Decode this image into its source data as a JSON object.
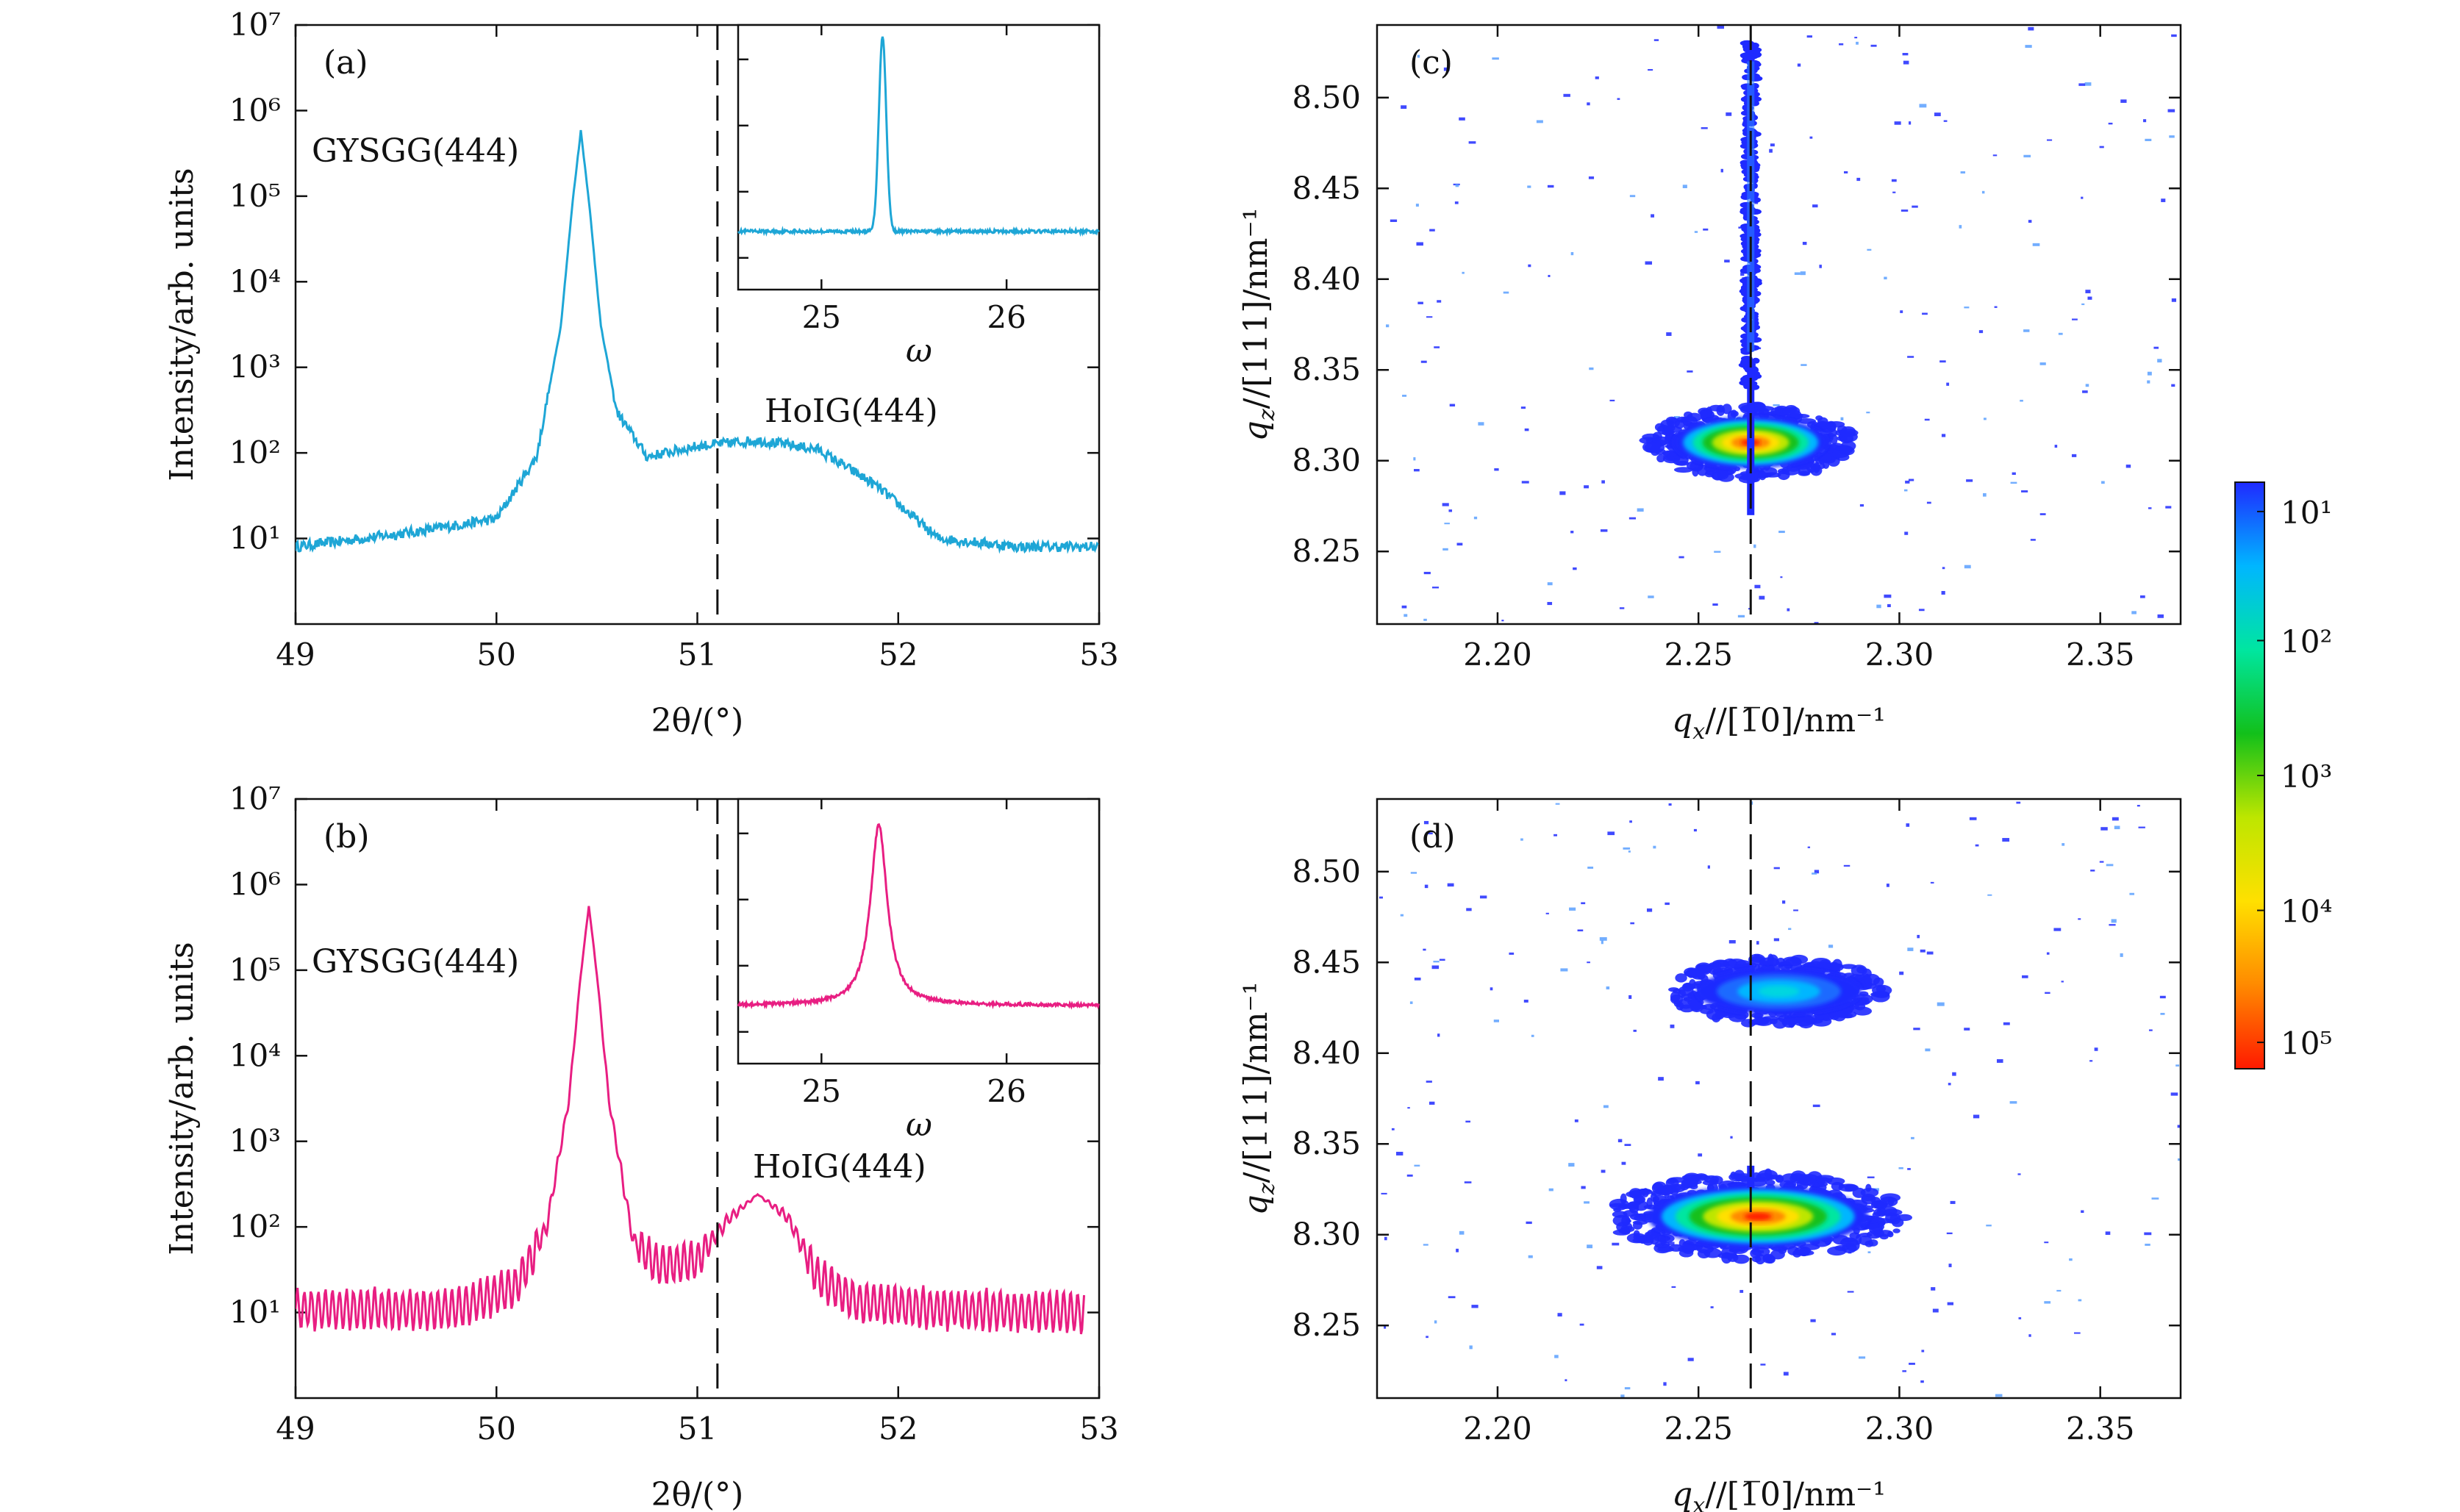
{
  "figure": {
    "panels": {
      "a": {
        "label": "(a)",
        "substrate_label": "GYSGG(444)",
        "film_label": "HoIG(444)"
      },
      "b": {
        "label": "(b)",
        "substrate_label": "GYSGG(444)",
        "film_label": "HoIG(444)"
      },
      "c": {
        "label": "(c)"
      },
      "d": {
        "label": "(d)"
      }
    },
    "colorbar": {
      "tick_labels": [
        "10¹",
        "10²",
        "10³",
        "10⁴",
        "10⁵"
      ],
      "colors_top_to_bottom": [
        "#1f2aff",
        "#00b6ff",
        "#00e6a0",
        "#12c01a",
        "#bde600",
        "#ffe000",
        "#ff8a00",
        "#ff1a00"
      ]
    }
  },
  "chart_data": [
    {
      "id": "a",
      "type": "line",
      "title": "",
      "xlabel": "2θ/(°)",
      "ylabel": "Intensity/arb. units",
      "xlim": [
        49,
        53
      ],
      "ylim_log10": [
        0,
        7
      ],
      "yscale": "log",
      "xticks": [
        "49",
        "50",
        "51",
        "52",
        "53"
      ],
      "yticks": [
        "10¹",
        "10²",
        "10³",
        "10⁴",
        "10⁵",
        "10⁶",
        "10⁷"
      ],
      "color": "#1ea6d6",
      "dashed_line_x": 51.1,
      "series": [
        {
          "x": [
            49.0,
            49.6,
            50.0,
            50.2,
            50.32,
            50.38,
            50.42,
            50.46,
            50.52,
            50.6,
            50.75,
            51.0,
            51.3,
            51.6,
            51.9,
            52.2,
            52.6,
            53.0
          ],
          "y": [
            8,
            12,
            17,
            90,
            3000,
            90000,
            580000,
            90000,
            3000,
            300,
            90,
            120,
            140,
            110,
            40,
            10,
            8,
            8
          ]
        }
      ],
      "noise": 0.12,
      "inset": {
        "xlabel": "ω",
        "xlim": [
          24.55,
          26.5
        ],
        "xticks": [
          "25",
          "26"
        ],
        "center": 25.33,
        "peak_height": 0.96,
        "width": 0.02,
        "baseline": 0.22,
        "shape": "gaussian"
      }
    },
    {
      "id": "b",
      "type": "line",
      "title": "",
      "xlabel": "2θ/(°)",
      "ylabel": "Intensity/arb. units",
      "xlim": [
        49,
        53
      ],
      "ylim_log10": [
        0,
        7
      ],
      "yscale": "log",
      "xticks": [
        "49",
        "50",
        "51",
        "52",
        "53"
      ],
      "yticks": [
        "10¹",
        "10²",
        "10³",
        "10⁴",
        "10⁵",
        "10⁶",
        "10⁷"
      ],
      "color": "#e81e82",
      "dashed_line_x": 51.1,
      "series": [
        {
          "x": [
            49.0,
            49.8,
            50.1,
            50.25,
            50.36,
            50.42,
            50.46,
            50.5,
            50.56,
            50.68,
            50.8,
            51.0,
            51.15,
            51.3,
            51.45,
            51.6,
            51.8,
            52.2,
            52.9
          ],
          "y": [
            11,
            11,
            20,
            100,
            3000,
            90000,
            560000,
            90000,
            3000,
            70,
            35,
            40,
            120,
            240,
            130,
            25,
            13,
            11,
            10
          ]
        }
      ],
      "oscillation": 0.45,
      "inset": {
        "xlabel": "ω",
        "xlim": [
          24.55,
          26.5
        ],
        "xticks": [
          "25",
          "26"
        ],
        "center": 25.31,
        "peak_height": 0.9,
        "width": 0.055,
        "baseline": 0.22,
        "shape": "lorentzian"
      }
    },
    {
      "id": "c",
      "type": "heatmap",
      "title": "",
      "xlabel": "q_x//[1-10]/nm⁻¹",
      "ylabel": "q_z//[111]/nm⁻¹",
      "xlim": [
        2.17,
        2.37
      ],
      "ylim": [
        8.21,
        8.54
      ],
      "xticks": [
        "2.20",
        "2.25",
        "2.30",
        "2.35"
      ],
      "yticks": [
        "8.25",
        "8.30",
        "8.35",
        "8.40",
        "8.45",
        "8.50"
      ],
      "dashed_line_x": 2.263,
      "spots": [
        {
          "qx": 2.263,
          "qz": 8.31,
          "intensity_log10": 5.0
        },
        {
          "qx": 2.263,
          "qz": 8.47,
          "intensity_log10": 1.6
        }
      ]
    },
    {
      "id": "d",
      "type": "heatmap",
      "title": "",
      "xlabel": "q_x//[1-10]/nm⁻¹",
      "ylabel": "q_z//[111]/nm⁻¹",
      "xlim": [
        2.17,
        2.37
      ],
      "ylim": [
        8.21,
        8.54
      ],
      "xticks": [
        "2.20",
        "2.25",
        "2.30",
        "2.35"
      ],
      "yticks": [
        "8.25",
        "8.30",
        "8.35",
        "8.40",
        "8.45",
        "8.50"
      ],
      "dashed_line_x": 2.263,
      "spots": [
        {
          "qx": 2.263,
          "qz": 8.31,
          "intensity_log10": 4.2
        },
        {
          "qx": 2.27,
          "qz": 8.434,
          "intensity_log10": 1.8
        }
      ]
    }
  ]
}
